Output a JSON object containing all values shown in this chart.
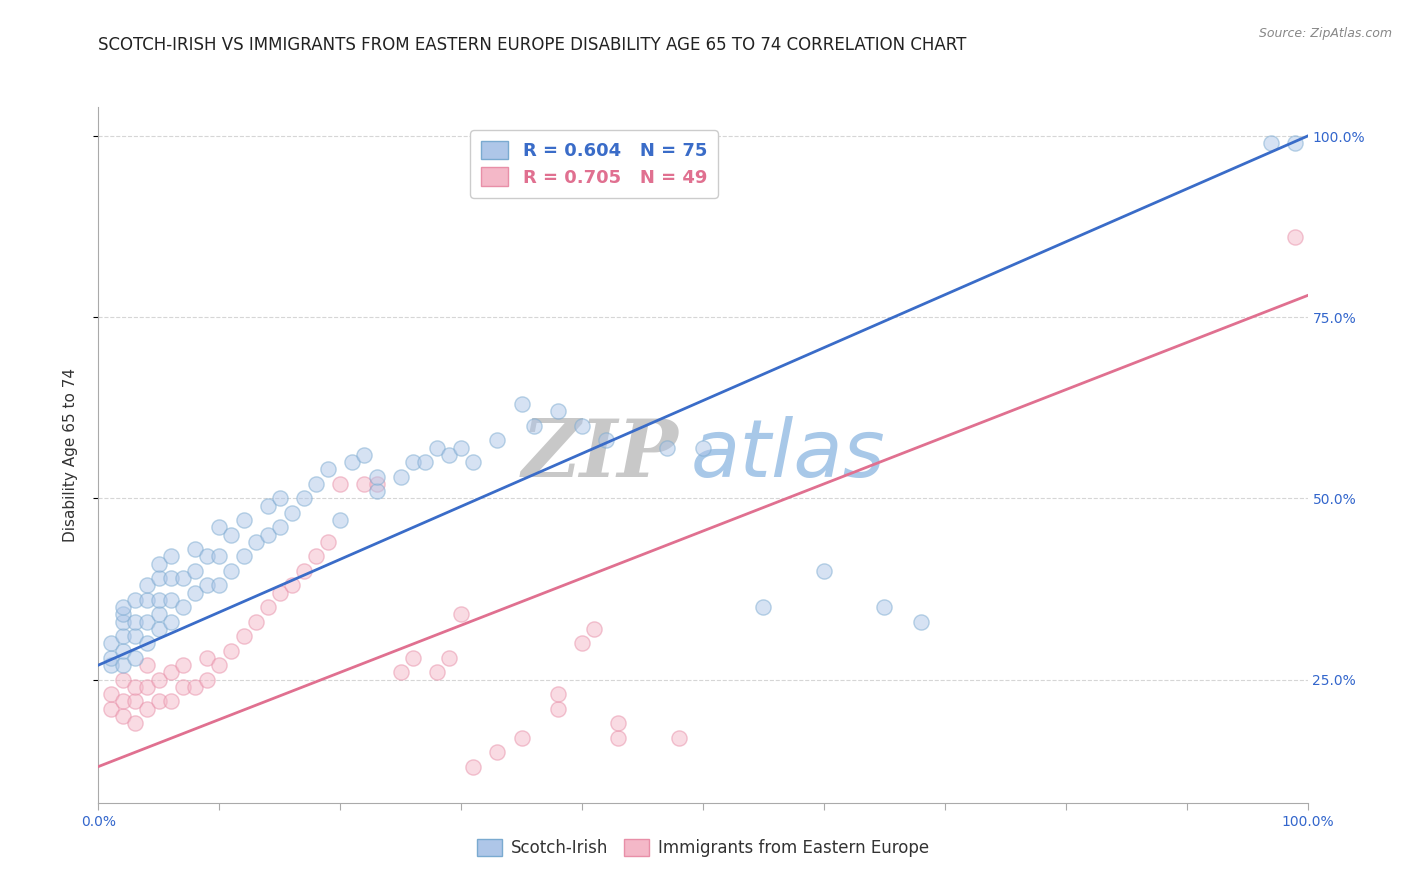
{
  "title": "SCOTCH-IRISH VS IMMIGRANTS FROM EASTERN EUROPE DISABILITY AGE 65 TO 74 CORRELATION CHART",
  "source": "Source: ZipAtlas.com",
  "ylabel": "Disability Age 65 to 74",
  "watermark_zip": "ZIP",
  "watermark_atlas": "atlas",
  "blue_label": "Scotch-Irish",
  "pink_label": "Immigrants from Eastern Europe",
  "blue_R": 0.604,
  "blue_N": 75,
  "pink_R": 0.705,
  "pink_N": 49,
  "blue_color": "#AEC6E8",
  "pink_color": "#F4B8C8",
  "blue_edge_color": "#7AAAD0",
  "pink_edge_color": "#E88FA8",
  "blue_line_color": "#3A6CC8",
  "pink_line_color": "#E07090",
  "xmin": 0.0,
  "xmax": 1.0,
  "ymin": 0.08,
  "ymax": 1.04,
  "right_yticks": [
    0.25,
    0.5,
    0.75,
    1.0
  ],
  "right_yticklabels": [
    "25.0%",
    "50.0%",
    "75.0%",
    "100.0%"
  ],
  "blue_scatter_x": [
    0.01,
    0.01,
    0.01,
    0.02,
    0.02,
    0.02,
    0.02,
    0.02,
    0.02,
    0.03,
    0.03,
    0.03,
    0.03,
    0.04,
    0.04,
    0.04,
    0.04,
    0.05,
    0.05,
    0.05,
    0.05,
    0.05,
    0.06,
    0.06,
    0.06,
    0.06,
    0.07,
    0.07,
    0.08,
    0.08,
    0.08,
    0.09,
    0.09,
    0.1,
    0.1,
    0.1,
    0.11,
    0.11,
    0.12,
    0.12,
    0.13,
    0.14,
    0.14,
    0.15,
    0.15,
    0.16,
    0.17,
    0.18,
    0.19,
    0.2,
    0.21,
    0.22,
    0.23,
    0.23,
    0.25,
    0.26,
    0.27,
    0.28,
    0.29,
    0.3,
    0.31,
    0.33,
    0.35,
    0.36,
    0.38,
    0.4,
    0.42,
    0.47,
    0.5,
    0.55,
    0.6,
    0.65,
    0.68,
    0.97,
    0.99
  ],
  "blue_scatter_y": [
    0.27,
    0.28,
    0.3,
    0.27,
    0.29,
    0.31,
    0.33,
    0.34,
    0.35,
    0.28,
    0.31,
    0.33,
    0.36,
    0.3,
    0.33,
    0.36,
    0.38,
    0.32,
    0.34,
    0.36,
    0.39,
    0.41,
    0.33,
    0.36,
    0.39,
    0.42,
    0.35,
    0.39,
    0.37,
    0.4,
    0.43,
    0.38,
    0.42,
    0.38,
    0.42,
    0.46,
    0.4,
    0.45,
    0.42,
    0.47,
    0.44,
    0.45,
    0.49,
    0.46,
    0.5,
    0.48,
    0.5,
    0.52,
    0.54,
    0.47,
    0.55,
    0.56,
    0.51,
    0.53,
    0.53,
    0.55,
    0.55,
    0.57,
    0.56,
    0.57,
    0.55,
    0.58,
    0.63,
    0.6,
    0.62,
    0.6,
    0.58,
    0.57,
    0.57,
    0.35,
    0.4,
    0.35,
    0.33,
    0.99,
    0.99
  ],
  "pink_scatter_x": [
    0.01,
    0.01,
    0.02,
    0.02,
    0.02,
    0.03,
    0.03,
    0.03,
    0.04,
    0.04,
    0.04,
    0.05,
    0.05,
    0.06,
    0.06,
    0.07,
    0.07,
    0.08,
    0.09,
    0.09,
    0.1,
    0.11,
    0.12,
    0.13,
    0.14,
    0.15,
    0.16,
    0.17,
    0.18,
    0.19,
    0.2,
    0.22,
    0.23,
    0.25,
    0.26,
    0.28,
    0.29,
    0.3,
    0.31,
    0.33,
    0.35,
    0.38,
    0.38,
    0.4,
    0.41,
    0.43,
    0.43,
    0.48,
    0.99
  ],
  "pink_scatter_y": [
    0.21,
    0.23,
    0.2,
    0.22,
    0.25,
    0.19,
    0.22,
    0.24,
    0.21,
    0.24,
    0.27,
    0.22,
    0.25,
    0.22,
    0.26,
    0.24,
    0.27,
    0.24,
    0.25,
    0.28,
    0.27,
    0.29,
    0.31,
    0.33,
    0.35,
    0.37,
    0.38,
    0.4,
    0.42,
    0.44,
    0.52,
    0.52,
    0.52,
    0.26,
    0.28,
    0.26,
    0.28,
    0.34,
    0.13,
    0.15,
    0.17,
    0.21,
    0.23,
    0.3,
    0.32,
    0.17,
    0.19,
    0.17,
    0.86
  ],
  "blue_line_y_at_0": 0.27,
  "blue_line_y_at_1": 1.0,
  "pink_line_y_at_0": 0.13,
  "pink_line_y_at_1": 0.78,
  "background_color": "#FFFFFF",
  "grid_color": "#CCCCCC",
  "title_fontsize": 12,
  "axis_label_fontsize": 11,
  "tick_fontsize": 10,
  "legend_fontsize": 13,
  "watermark_fontsize_zip": 58,
  "watermark_fontsize_atlas": 58,
  "watermark_color_zip": "#C8C8C8",
  "watermark_color_atlas": "#A8C8E8",
  "marker_size": 120,
  "marker_alpha": 0.5,
  "line_width": 2.0
}
